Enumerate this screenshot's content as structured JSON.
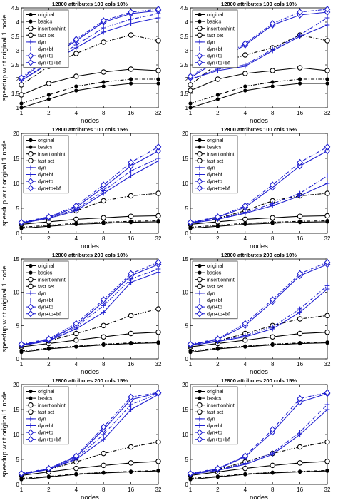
{
  "figure": {
    "xlabel": "nodes",
    "ylabel": "speedup w.r.t original 1 node"
  },
  "legend": [
    "original",
    "basics",
    "insertionhint",
    "fast set",
    "dyn",
    "dyn+bf",
    "dyn+tp",
    "dyn+tp+bf"
  ],
  "series_styles": [
    {
      "color": "#000000",
      "marker": "dot",
      "dash": "solid"
    },
    {
      "color": "#000000",
      "marker": "dot",
      "dash": "dashdot"
    },
    {
      "color": "#000000",
      "marker": "circle",
      "dash": "solid"
    },
    {
      "color": "#000000",
      "marker": "circle",
      "dash": "dashdot"
    },
    {
      "color": "#1f1fd0",
      "marker": "plus",
      "dash": "solid"
    },
    {
      "color": "#1f1fd0",
      "marker": "plus",
      "dash": "dashdot"
    },
    {
      "color": "#1f1fd0",
      "marker": "diamond",
      "dash": "solid"
    },
    {
      "color": "#1f1fd0",
      "marker": "diamond",
      "dash": "dashdot"
    }
  ],
  "chart_data": [
    {
      "type": "line",
      "title": "12800 attributes 100 cols 10%",
      "xlabel": "nodes",
      "ylabel": "speedup w.r.t original 1 node",
      "x": [
        1,
        2,
        4,
        8,
        16,
        32
      ],
      "xscale": "log2",
      "ylim": [
        1,
        4.5
      ],
      "yticks": [
        1,
        1.5,
        2,
        2.5,
        3,
        3.5,
        4,
        4.5
      ],
      "grid": false,
      "legend": "top-left",
      "series": [
        {
          "name": "original",
          "values": [
            1.0,
            1.3,
            1.6,
            1.75,
            1.85,
            1.85
          ]
        },
        {
          "name": "basics",
          "values": [
            1.15,
            1.45,
            1.75,
            1.9,
            2.0,
            2.0
          ]
        },
        {
          "name": "insertionhint",
          "values": [
            1.45,
            1.85,
            2.1,
            2.25,
            2.35,
            2.3
          ]
        },
        {
          "name": "fast set",
          "values": [
            1.8,
            2.45,
            2.9,
            3.3,
            3.55,
            3.35
          ]
        },
        {
          "name": "dyn",
          "values": [
            1.95,
            2.55,
            3.1,
            3.65,
            3.95,
            4.15
          ]
        },
        {
          "name": "dyn+bf",
          "values": [
            1.95,
            2.6,
            3.2,
            3.8,
            4.1,
            4.3
          ]
        },
        {
          "name": "dyn+tp",
          "values": [
            2.0,
            2.75,
            3.35,
            4.0,
            4.3,
            4.4
          ]
        },
        {
          "name": "dyn+tp+bf",
          "values": [
            2.05,
            2.8,
            3.4,
            4.05,
            4.35,
            4.45
          ]
        }
      ]
    },
    {
      "type": "line",
      "title": "12800 attributes 100 cols 10%",
      "xlabel": "nodes",
      "ylabel": "",
      "x": [
        1,
        2,
        4,
        8,
        16,
        32
      ],
      "xscale": "log2",
      "ylim": [
        1,
        4.5
      ],
      "yticks": [
        1,
        1.5,
        2,
        2.5,
        3,
        3.5,
        4,
        4.5
      ],
      "grid": false,
      "legend": "top-left",
      "series": [
        {
          "name": "original",
          "values": [
            1.0,
            1.3,
            1.6,
            1.75,
            1.85,
            1.85
          ]
        },
        {
          "name": "basics",
          "values": [
            1.15,
            1.45,
            1.75,
            1.9,
            2.0,
            2.0
          ]
        },
        {
          "name": "insertionhint",
          "values": [
            1.6,
            2.0,
            2.2,
            2.3,
            2.4,
            2.3
          ]
        },
        {
          "name": "fast set",
          "values": [
            1.8,
            2.55,
            2.85,
            3.1,
            3.55,
            3.35
          ]
        },
        {
          "name": "dyn",
          "values": [
            2.0,
            2.3,
            2.45,
            3.0,
            3.5,
            3.9
          ]
        },
        {
          "name": "dyn+bf",
          "values": [
            2.0,
            2.35,
            2.5,
            3.05,
            3.55,
            4.15
          ]
        },
        {
          "name": "dyn+tp",
          "values": [
            2.05,
            2.65,
            3.2,
            3.9,
            4.25,
            4.35
          ]
        },
        {
          "name": "dyn+tp+bf",
          "values": [
            2.1,
            2.7,
            3.25,
            3.95,
            4.35,
            4.45
          ]
        }
      ]
    },
    {
      "type": "line",
      "title": "12800 attributes 100 cols 15%",
      "xlabel": "nodes",
      "ylabel": "speedup w.r.t original 1 node",
      "x": [
        1,
        2,
        4,
        8,
        16,
        32
      ],
      "xscale": "log2",
      "ylim": [
        0,
        20
      ],
      "yticks": [
        0,
        5,
        10,
        15,
        20
      ],
      "grid": false,
      "legend": "top-left",
      "series": [
        {
          "name": "original",
          "values": [
            1.0,
            1.4,
            1.8,
            2.0,
            2.2,
            2.3
          ]
        },
        {
          "name": "basics",
          "values": [
            1.2,
            1.6,
            2.0,
            2.2,
            2.4,
            2.5
          ]
        },
        {
          "name": "insertionhint",
          "values": [
            1.8,
            2.3,
            2.8,
            3.1,
            3.4,
            3.5
          ]
        },
        {
          "name": "fast set",
          "values": [
            2.0,
            3.0,
            4.5,
            6.5,
            7.5,
            8.0
          ]
        },
        {
          "name": "dyn",
          "values": [
            2.0,
            3.0,
            4.5,
            8.0,
            11.5,
            14.5
          ]
        },
        {
          "name": "dyn+bf",
          "values": [
            2.0,
            3.1,
            4.8,
            8.5,
            12.5,
            15.0
          ]
        },
        {
          "name": "dyn+tp",
          "values": [
            2.1,
            3.2,
            5.2,
            9.2,
            13.5,
            16.5
          ]
        },
        {
          "name": "dyn+tp+bf",
          "values": [
            2.2,
            3.3,
            5.5,
            9.7,
            14.2,
            17.3
          ]
        }
      ]
    },
    {
      "type": "line",
      "title": "12800 attributes 100 cols 15%",
      "xlabel": "nodes",
      "ylabel": "",
      "x": [
        1,
        2,
        4,
        8,
        16,
        32
      ],
      "xscale": "log2",
      "ylim": [
        0,
        20
      ],
      "yticks": [
        0,
        5,
        10,
        15,
        20
      ],
      "grid": false,
      "legend": "top-left",
      "series": [
        {
          "name": "original",
          "values": [
            1.0,
            1.4,
            1.8,
            2.0,
            2.2,
            2.3
          ]
        },
        {
          "name": "basics",
          "values": [
            1.2,
            1.6,
            2.0,
            2.2,
            2.4,
            2.5
          ]
        },
        {
          "name": "insertionhint",
          "values": [
            1.8,
            2.3,
            2.8,
            3.1,
            3.4,
            3.5
          ]
        },
        {
          "name": "fast set",
          "values": [
            2.0,
            3.0,
            4.5,
            6.5,
            7.5,
            8.0
          ]
        },
        {
          "name": "dyn",
          "values": [
            2.0,
            2.8,
            4.0,
            5.5,
            7.5,
            10.0
          ]
        },
        {
          "name": "dyn+bf",
          "values": [
            2.0,
            2.9,
            4.2,
            5.9,
            8.0,
            11.5
          ]
        },
        {
          "name": "dyn+tp",
          "values": [
            2.1,
            3.2,
            5.2,
            9.2,
            13.5,
            16.5
          ]
        },
        {
          "name": "dyn+tp+bf",
          "values": [
            2.2,
            3.3,
            5.5,
            9.7,
            14.2,
            17.3
          ]
        }
      ]
    },
    {
      "type": "line",
      "title": "12800 attributes 200 cols 10%",
      "xlabel": "nodes",
      "ylabel": "speedup w.r.t original 1 node",
      "x": [
        1,
        2,
        4,
        8,
        16,
        32
      ],
      "xscale": "log2",
      "ylim": [
        0,
        15
      ],
      "yticks": [
        0,
        5,
        10,
        15
      ],
      "grid": false,
      "legend": "top-left",
      "series": [
        {
          "name": "original",
          "values": [
            1.0,
            1.5,
            1.8,
            2.1,
            2.3,
            2.4
          ]
        },
        {
          "name": "basics",
          "values": [
            1.2,
            1.6,
            1.9,
            2.2,
            2.4,
            2.5
          ]
        },
        {
          "name": "insertionhint",
          "values": [
            1.8,
            2.3,
            2.8,
            3.3,
            3.8,
            4.0
          ]
        },
        {
          "name": "fast set",
          "values": [
            2.0,
            2.7,
            3.8,
            5.0,
            6.5,
            7.5
          ]
        },
        {
          "name": "dyn",
          "values": [
            2.0,
            2.7,
            4.5,
            7.0,
            11.5,
            13.0
          ]
        },
        {
          "name": "dyn+bf",
          "values": [
            2.0,
            2.8,
            4.8,
            8.0,
            12.0,
            13.5
          ]
        },
        {
          "name": "dyn+tp",
          "values": [
            2.1,
            2.9,
            5.0,
            8.6,
            12.5,
            14.2
          ]
        },
        {
          "name": "dyn+tp+bf",
          "values": [
            2.2,
            3.0,
            5.3,
            8.9,
            12.8,
            14.5
          ]
        }
      ]
    },
    {
      "type": "line",
      "title": "12800 attributes 200 cols 10%",
      "xlabel": "nodes",
      "ylabel": "",
      "x": [
        1,
        2,
        4,
        8,
        16,
        32
      ],
      "xscale": "log2",
      "ylim": [
        0,
        15
      ],
      "yticks": [
        0,
        5,
        10,
        15
      ],
      "grid": false,
      "legend": "top-left",
      "series": [
        {
          "name": "original",
          "values": [
            1.0,
            1.5,
            1.8,
            2.1,
            2.3,
            2.4
          ]
        },
        {
          "name": "basics",
          "values": [
            1.2,
            1.6,
            1.9,
            2.2,
            2.4,
            2.5
          ]
        },
        {
          "name": "insertionhint",
          "values": [
            1.8,
            2.3,
            2.8,
            3.3,
            3.8,
            4.0
          ]
        },
        {
          "name": "fast set",
          "values": [
            2.0,
            2.7,
            3.8,
            5.0,
            6.0,
            6.5
          ]
        },
        {
          "name": "dyn",
          "values": [
            2.0,
            2.6,
            3.3,
            4.5,
            7.0,
            10.5
          ]
        },
        {
          "name": "dyn+bf",
          "values": [
            2.0,
            2.7,
            3.5,
            4.8,
            7.5,
            11.0
          ]
        },
        {
          "name": "dyn+tp",
          "values": [
            2.1,
            2.9,
            5.0,
            8.6,
            12.5,
            14.2
          ]
        },
        {
          "name": "dyn+tp+bf",
          "values": [
            2.2,
            3.0,
            5.3,
            8.9,
            12.8,
            14.5
          ]
        }
      ]
    },
    {
      "type": "line",
      "title": "12800 attributes 200 cols 15%",
      "xlabel": "nodes",
      "ylabel": "speedup w.r.t original 1 node",
      "x": [
        1,
        2,
        4,
        8,
        16,
        32
      ],
      "xscale": "log2",
      "ylim": [
        0,
        20
      ],
      "yticks": [
        0,
        5,
        10,
        15,
        20
      ],
      "grid": false,
      "legend": "top-left",
      "series": [
        {
          "name": "original",
          "values": [
            1.0,
            1.5,
            2.0,
            2.3,
            2.5,
            2.7
          ]
        },
        {
          "name": "basics",
          "values": [
            1.2,
            1.6,
            2.1,
            2.4,
            2.6,
            2.8
          ]
        },
        {
          "name": "insertionhint",
          "values": [
            1.8,
            2.5,
            3.2,
            3.8,
            4.3,
            4.6
          ]
        },
        {
          "name": "fast set",
          "values": [
            2.0,
            3.0,
            4.5,
            6.2,
            7.5,
            8.5
          ]
        },
        {
          "name": "dyn",
          "values": [
            2.0,
            3.0,
            5.0,
            9.0,
            15.0,
            18.0
          ]
        },
        {
          "name": "dyn+bf",
          "values": [
            2.0,
            3.0,
            5.2,
            10.0,
            16.0,
            18.2
          ]
        },
        {
          "name": "dyn+tp",
          "values": [
            2.1,
            3.1,
            5.5,
            11.0,
            17.0,
            18.3
          ]
        },
        {
          "name": "dyn+tp+bf",
          "values": [
            2.2,
            3.2,
            5.7,
            11.5,
            17.5,
            18.4
          ]
        }
      ]
    },
    {
      "type": "line",
      "title": "12800 attributes 200 cols 15%",
      "xlabel": "nodes",
      "ylabel": "",
      "x": [
        1,
        2,
        4,
        8,
        16,
        32
      ],
      "xscale": "log2",
      "ylim": [
        0,
        20
      ],
      "yticks": [
        0,
        5,
        10,
        15,
        20
      ],
      "grid": false,
      "legend": "top-left",
      "series": [
        {
          "name": "original",
          "values": [
            1.0,
            1.5,
            2.0,
            2.3,
            2.5,
            2.7
          ]
        },
        {
          "name": "basics",
          "values": [
            1.2,
            1.6,
            2.1,
            2.4,
            2.6,
            2.8
          ]
        },
        {
          "name": "insertionhint",
          "values": [
            1.8,
            2.5,
            3.2,
            3.8,
            4.3,
            4.6
          ]
        },
        {
          "name": "fast set",
          "values": [
            2.0,
            3.0,
            4.5,
            6.2,
            7.5,
            8.5
          ]
        },
        {
          "name": "dyn",
          "values": [
            2.0,
            2.8,
            4.0,
            6.0,
            10.0,
            15.0
          ]
        },
        {
          "name": "dyn+bf",
          "values": [
            2.0,
            2.9,
            4.2,
            6.3,
            10.5,
            16.0
          ]
        },
        {
          "name": "dyn+tp",
          "values": [
            2.1,
            3.1,
            5.5,
            10.5,
            16.5,
            18.2
          ]
        },
        {
          "name": "dyn+tp+bf",
          "values": [
            2.2,
            3.2,
            5.7,
            11.0,
            17.2,
            18.4
          ]
        }
      ]
    }
  ]
}
